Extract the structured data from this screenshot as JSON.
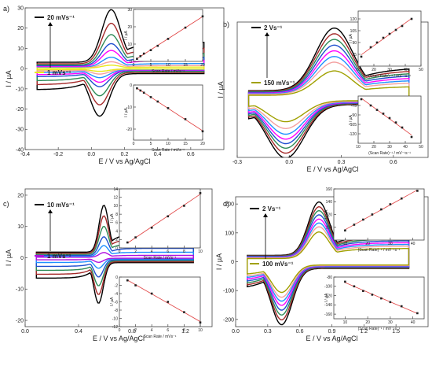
{
  "chart_data": [
    {
      "id": "a",
      "type": "line",
      "panel_label": "a)",
      "xlabel": "E / V vs Ag/AgCl",
      "ylabel": "I / µA",
      "xlim": [
        -0.4,
        0.8
      ],
      "ylim": [
        -40,
        30
      ],
      "xticks": [
        "-0.4",
        "-0.2",
        "0.0",
        "0.2",
        "0.4",
        "0.6"
      ],
      "yticks": [
        "30",
        "20",
        "10",
        "0",
        "-10",
        "-20",
        "-30",
        "-40"
      ],
      "legend": [
        {
          "name": "20 mVs⁻¹",
          "color": "#000000"
        },
        {
          "name": "1 mVs⁻¹",
          "color": "#e8e81a"
        }
      ],
      "peak": {
        "E_anodic": 0.12,
        "E_cathodic": 0.05,
        "width": 0.08
      },
      "series": [
        {
          "scan_rate": 20,
          "ipa": 26,
          "ipc": -21,
          "color": "#000000"
        },
        {
          "scan_rate": 15,
          "ipa": 20,
          "ipc": -16,
          "color": "#a52a2a"
        },
        {
          "scan_rate": 10,
          "ipa": 15,
          "ipc": -12,
          "color": "#2e8b57"
        },
        {
          "scan_rate": 7,
          "ipa": 11,
          "ipc": -8,
          "color": "#1e4fcf"
        },
        {
          "scan_rate": 5,
          "ipa": 8,
          "ipc": -6,
          "color": "#ff00ff"
        },
        {
          "scan_rate": 3,
          "ipa": 5,
          "ipc": -4,
          "color": "#1e90ff"
        },
        {
          "scan_rate": 2,
          "ipa": 3,
          "ipc": -2.4,
          "color": "#f4a0a0"
        },
        {
          "scan_rate": 1,
          "ipa": 1.5,
          "ipc": -1.2,
          "color": "#e8e81a"
        }
      ],
      "insets": [
        {
          "xlabel": "Scan Rate / mVs⁻¹",
          "ylabel": "I / µA",
          "xlim": [
            0,
            20
          ],
          "ylim": [
            0,
            30
          ],
          "xticks": [
            "0",
            "5",
            "10",
            "15",
            "20"
          ],
          "yticks": [
            "0",
            "10",
            "20",
            "30"
          ],
          "x": [
            1,
            2,
            3,
            5,
            7,
            10,
            15,
            20
          ],
          "y": [
            1.5,
            3,
            4.5,
            6.5,
            9,
            13,
            19.5,
            26
          ]
        },
        {
          "xlabel": "Scan Rate / mVs⁻¹",
          "ylabel": "I / µA",
          "xlim": [
            0,
            20
          ],
          "ylim": [
            -25,
            0
          ],
          "xticks": [
            "0",
            "5",
            "10",
            "15",
            "20"
          ],
          "yticks": [
            "0",
            "-10",
            "-20"
          ],
          "x": [
            1,
            2,
            3,
            5,
            7,
            10,
            15,
            20
          ],
          "y": [
            -1.5,
            -2.5,
            -3.5,
            -5.5,
            -7.5,
            -10.5,
            -15.5,
            -21
          ]
        }
      ]
    },
    {
      "id": "b",
      "type": "line",
      "panel_label": "b)",
      "xlabel": "E / V vs Ag/AgCl",
      "ylabel": "I / µA",
      "xlim": [
        -0.3,
        0.8
      ],
      "ylim": [
        -175,
        225
      ],
      "xticks": [
        "-0.3",
        "0.0",
        "0.3",
        "0.6"
      ],
      "yticks": [],
      "legend": [
        {
          "name": "2 Vs⁻¹",
          "color": "#000000"
        },
        {
          "name": "150 mVs⁻¹",
          "color": "#a0a000"
        }
      ],
      "peak": {
        "E_anodic": 0.26,
        "E_cathodic": -0.02,
        "width": 0.15
      },
      "series": [
        {
          "scan_rate": 2000,
          "ipa": 185,
          "ipc": -158,
          "color": "#000000"
        },
        {
          "scan_rate": 1500,
          "ipa": 170,
          "ipc": -145,
          "color": "#a52a2a"
        },
        {
          "scan_rate": 1200,
          "ipa": 155,
          "ipc": -132,
          "color": "#2e8b57"
        },
        {
          "scan_rate": 1000,
          "ipa": 140,
          "ipc": -120,
          "color": "#1e4fcf"
        },
        {
          "scan_rate": 800,
          "ipa": 125,
          "ipc": -108,
          "color": "#ff00ff"
        },
        {
          "scan_rate": 600,
          "ipa": 110,
          "ipc": -95,
          "color": "#1e90ff"
        },
        {
          "scan_rate": 400,
          "ipa": 95,
          "ipc": -80,
          "color": "#f4a0a0"
        },
        {
          "scan_rate": 150,
          "ipa": 72,
          "ipc": -62,
          "color": "#a0a000"
        }
      ],
      "insets": [
        {
          "xlabel": "(Scan Rate)⁻¹ / mV⁻¹s⁻¹",
          "ylabel": "I / µA",
          "xlim": [
            10,
            50
          ],
          "ylim": [
            60,
            130
          ],
          "xticks": [
            "10",
            "20",
            "30",
            "40",
            "50"
          ],
          "yticks": [
            "75",
            "90",
            "105",
            "120"
          ],
          "x": [
            12,
            18,
            22,
            26,
            30,
            34,
            38,
            44
          ],
          "y": [
            72,
            84,
            90,
            96,
            101,
            106,
            111,
            120
          ]
        },
        {
          "xlabel": "(Scan Rate)⁻¹ / mV⁻¹s⁻¹",
          "ylabel": "I / µA",
          "xlim": [
            10,
            50
          ],
          "ylim": [
            -135,
            -60
          ],
          "xticks": [
            "10",
            "20",
            "30",
            "40",
            "50"
          ],
          "yticks": [
            "-75",
            "-90",
            "-105",
            "-120"
          ],
          "x": [
            12,
            18,
            22,
            26,
            30,
            34,
            38,
            44
          ],
          "y": [
            -65,
            -75,
            -82,
            -88,
            -95,
            -102,
            -110,
            -125
          ]
        }
      ]
    },
    {
      "id": "c",
      "type": "line",
      "panel_label": "c)",
      "xlabel": "E / V vs Ag/AgCl",
      "ylabel": "I / µA",
      "xlim": [
        0.0,
        1.4
      ],
      "ylim": [
        -22,
        22
      ],
      "xticks": [
        "0.0",
        "0.4",
        "0.8",
        "1.2"
      ],
      "yticks": [
        "20",
        "10",
        "0",
        "-10",
        "-20"
      ],
      "legend": [
        {
          "name": "10 mVs⁻¹",
          "color": "#000000"
        },
        {
          "name": "1 mVs⁻¹",
          "color": "#b010e0"
        }
      ],
      "peak": {
        "E_anodic": 0.59,
        "E_cathodic": 0.55,
        "width": 0.05
      },
      "series": [
        {
          "scan_rate": 10,
          "ipa": 15,
          "ipc": -13,
          "color": "#000000"
        },
        {
          "scan_rate": 8,
          "ipa": 12,
          "ipc": -10.5,
          "color": "#a52a2a"
        },
        {
          "scan_rate": 6,
          "ipa": 9,
          "ipc": -8,
          "color": "#2e8b57"
        },
        {
          "scan_rate": 4,
          "ipa": 6,
          "ipc": -5.5,
          "color": "#1e4fcf"
        },
        {
          "scan_rate": 2,
          "ipa": 3.5,
          "ipc": -3,
          "color": "#1e90ff"
        },
        {
          "scan_rate": 1,
          "ipa": 1.5,
          "ipc": -1.3,
          "color": "#b010e0"
        }
      ],
      "insets": [
        {
          "xlabel": "Scan Rate / mVs⁻¹",
          "ylabel": "I / µA",
          "xlim": [
            0,
            10
          ],
          "ylim": [
            0,
            14
          ],
          "xticks": [
            "0",
            "2",
            "4",
            "6",
            "8",
            "10"
          ],
          "yticks": [
            "0",
            "2",
            "4",
            "6",
            "8",
            "10",
            "12",
            "14"
          ],
          "x": [
            1,
            2,
            4,
            6,
            8,
            10
          ],
          "y": [
            1.3,
            2.5,
            4.8,
            7.5,
            10,
            13
          ]
        },
        {
          "xlabel": "Scan Rate / mVs⁻¹",
          "ylabel": "I / µA",
          "xlim": [
            0,
            10
          ],
          "ylim": [
            -12,
            0
          ],
          "xticks": [
            "0",
            "2",
            "4",
            "6",
            "8",
            "10"
          ],
          "yticks": [
            "0",
            "-2",
            "-4",
            "-6",
            "-8",
            "-10",
            "-12"
          ],
          "x": [
            1,
            2,
            4,
            6,
            8,
            10
          ],
          "y": [
            -0.8,
            -2,
            -4,
            -6,
            -8.5,
            -11
          ]
        }
      ]
    },
    {
      "id": "d",
      "type": "line",
      "panel_label": "d)",
      "xlabel": "E / V vs Ag/AgCl",
      "ylabel": "I / µA",
      "xlim": [
        0.0,
        1.8
      ],
      "ylim": [
        -225,
        225
      ],
      "xticks": [
        "0.0",
        "0.3",
        "0.6",
        "0.9",
        "1.2",
        "1.5"
      ],
      "yticks": [
        "200",
        "100",
        "0",
        "-100",
        "-200"
      ],
      "legend": [
        {
          "name": "2 Vs⁻¹",
          "color": "#000000"
        },
        {
          "name": "100 mVs⁻¹",
          "color": "#a0a000"
        }
      ],
      "peak": {
        "E_anodic": 0.78,
        "E_cathodic": 0.43,
        "width": 0.14
      },
      "series": [
        {
          "scan_rate": 2000,
          "ipa": 185,
          "ipc": -195,
          "color": "#000000"
        },
        {
          "scan_rate": 1500,
          "ipa": 170,
          "ipc": -180,
          "color": "#a52a2a"
        },
        {
          "scan_rate": 1200,
          "ipa": 158,
          "ipc": -165,
          "color": "#2e8b57"
        },
        {
          "scan_rate": 1000,
          "ipa": 145,
          "ipc": -150,
          "color": "#1e4fcf"
        },
        {
          "scan_rate": 800,
          "ipa": 132,
          "ipc": -135,
          "color": "#ff00ff"
        },
        {
          "scan_rate": 600,
          "ipa": 120,
          "ipc": -122,
          "color": "#1e90ff"
        },
        {
          "scan_rate": 400,
          "ipa": 108,
          "ipc": -110,
          "color": "#f4a0a0"
        },
        {
          "scan_rate": 100,
          "ipa": 92,
          "ipc": -95,
          "color": "#a0a000"
        }
      ],
      "insets": [
        {
          "xlabel": "(Scan Rate)⁻¹ / mV⁻¹s⁻¹",
          "ylabel": "I / µA",
          "xlim": [
            5,
            45
          ],
          "ylim": [
            80,
            160
          ],
          "xticks": [
            "10",
            "20",
            "30",
            "40"
          ],
          "yticks": [
            "100",
            "120",
            "140",
            "160"
          ],
          "x": [
            10,
            14,
            18,
            22,
            26,
            30,
            35,
            42
          ],
          "y": [
            95,
            104,
            112,
            120,
            128,
            136,
            145,
            157
          ]
        },
        {
          "xlabel": "(Scan Rate)⁻¹ / mV⁻¹s⁻¹",
          "ylabel": "I / µA",
          "xlim": [
            5,
            45
          ],
          "ylim": [
            -170,
            -80
          ],
          "xticks": [
            "10",
            "20",
            "30",
            "40"
          ],
          "yticks": [
            "-80",
            "-100",
            "-120",
            "-140",
            "-160"
          ],
          "x": [
            10,
            14,
            18,
            22,
            26,
            30,
            35,
            42
          ],
          "y": [
            -90,
            -100,
            -110,
            -118,
            -126,
            -134,
            -143,
            -158
          ]
        }
      ]
    }
  ]
}
